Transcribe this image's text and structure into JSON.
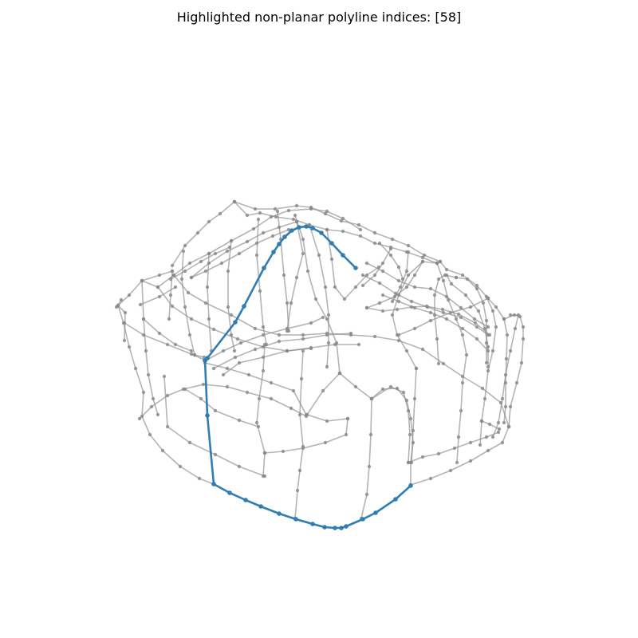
{
  "title": "Highlighted non-planar polyline indices: [58]",
  "colors": {
    "background": "#ffffff",
    "wire": "#8c8c8c",
    "vertex": "#888888",
    "highlight": "#2f7db3"
  },
  "diagram": {
    "highlighted_indices": [
      58
    ]
  }
}
